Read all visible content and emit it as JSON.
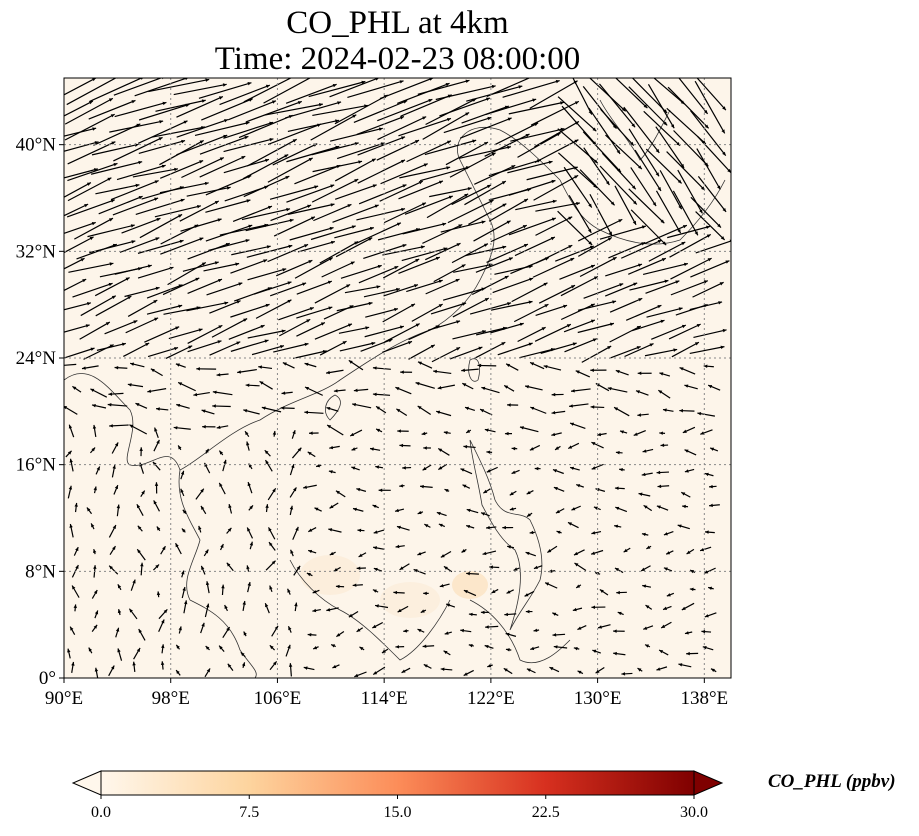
{
  "map": {
    "title_line1": "CO_PHL at 4km",
    "title_line2": "Time: 2024-02-23 08:00:00",
    "extent": {
      "lon": [
        90,
        140
      ],
      "lat": [
        0,
        45
      ]
    },
    "lon_ticks": [
      {
        "value": 90,
        "label": "90°E"
      },
      {
        "value": 98,
        "label": "98°E"
      },
      {
        "value": 106,
        "label": "106°E"
      },
      {
        "value": 114,
        "label": "114°E"
      },
      {
        "value": 122,
        "label": "122°E"
      },
      {
        "value": 130,
        "label": "130°E"
      },
      {
        "value": 138,
        "label": "138°E"
      }
    ],
    "lat_ticks": [
      {
        "value": 0,
        "label": "0°"
      },
      {
        "value": 8,
        "label": "8°N"
      },
      {
        "value": 16,
        "label": "16°N"
      },
      {
        "value": 24,
        "label": "24°N"
      },
      {
        "value": 32,
        "label": "32°N"
      },
      {
        "value": 40,
        "label": "40°N"
      }
    ],
    "background_color": "#fdf5ea",
    "gridlines": "dotted",
    "field": "CO_PHL",
    "vectors": "wind arrows"
  },
  "colorbar": {
    "title": "CO_PHL (ppbv)",
    "range": [
      0.0,
      30.0
    ],
    "ticks": [
      {
        "value": 0.0,
        "label": "0.0"
      },
      {
        "value": 7.5,
        "label": "7.5"
      },
      {
        "value": 15.0,
        "label": "15.0"
      },
      {
        "value": 22.5,
        "label": "22.5"
      },
      {
        "value": 30.0,
        "label": "30.0"
      }
    ],
    "colormap": "OrRd",
    "colors": [
      "#fff7ec",
      "#fdd49e",
      "#fc8d59",
      "#d7301f",
      "#7f0000"
    ],
    "extend": "both"
  }
}
